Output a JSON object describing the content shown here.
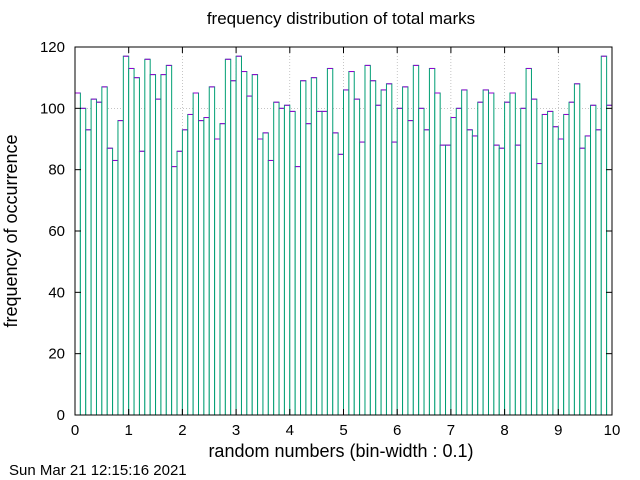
{
  "chart_data": {
    "type": "bar",
    "title": "frequency distribution of total marks",
    "xlabel": "random numbers (bin-width : 0.1)",
    "ylabel": "frequency of occurrence",
    "xlim": [
      0,
      10
    ],
    "ylim": [
      0,
      120
    ],
    "bin_width": 0.1,
    "x_ticks": [
      "0",
      "1",
      "2",
      "3",
      "4",
      "5",
      "6",
      "7",
      "8",
      "9",
      "10"
    ],
    "y_ticks": [
      "0",
      "20",
      "40",
      "60",
      "80",
      "100",
      "120"
    ],
    "grid": true,
    "fill_color": "#ffffff",
    "bar_color": "#009e73",
    "top_color": "#9400d3",
    "series": [
      {
        "values": [
          105,
          100,
          93,
          103,
          102,
          107,
          87,
          83,
          96,
          117,
          113,
          110,
          86,
          116,
          111,
          103,
          111,
          114,
          81,
          86,
          93,
          98,
          105,
          96,
          97,
          107,
          90,
          95,
          116,
          109,
          117,
          112,
          104,
          111,
          90,
          92,
          83,
          102,
          100,
          101,
          99,
          81,
          109,
          95,
          110,
          99,
          99,
          113,
          92,
          85,
          106,
          112,
          103,
          89,
          114,
          109,
          101,
          106,
          108,
          89,
          100,
          107,
          96,
          114,
          100,
          93,
          113,
          105,
          88,
          88,
          97,
          100,
          106,
          93,
          91,
          102,
          106,
          105,
          88,
          87,
          102,
          105,
          88,
          100,
          113,
          103,
          82,
          98,
          99,
          94,
          90,
          98,
          102,
          108,
          87,
          91,
          101,
          93,
          117,
          101
        ]
      }
    ]
  },
  "footer": {
    "timestamp": "Sun Mar 21 12:15:16 2021"
  }
}
